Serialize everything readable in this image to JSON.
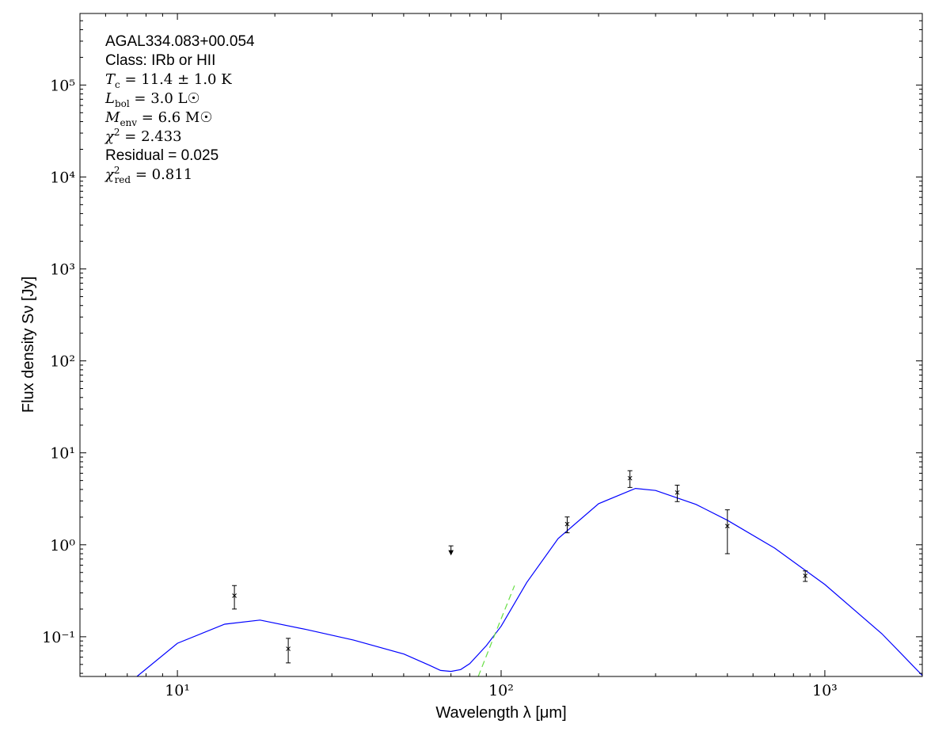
{
  "chart_data": {
    "type": "scatter",
    "x_label": "Wavelength λ [μm]",
    "y_label": "Flux density Sν [Jy]",
    "log_x": true,
    "log_y": true,
    "xlim": [
      5,
      2000
    ],
    "ylim": [
      0.037,
      600000
    ],
    "xticks": [
      {
        "value": 10,
        "label": "10¹"
      },
      {
        "value": 100,
        "label": "10²"
      },
      {
        "value": 1000,
        "label": "10³"
      }
    ],
    "yticks": [
      {
        "value": 0.1,
        "label": "10⁻¹"
      },
      {
        "value": 1,
        "label": "10⁰"
      },
      {
        "value": 10,
        "label": "10¹"
      },
      {
        "value": 100,
        "label": "10²"
      },
      {
        "value": 1000,
        "label": "10³"
      },
      {
        "value": 10000,
        "label": "10⁴"
      },
      {
        "value": 100000,
        "label": "10⁵"
      }
    ],
    "annotations": [
      {
        "text": "AGAL334.083+00.054"
      },
      {
        "text": "Class: IRb or HII"
      },
      {
        "symbol": "T",
        "sub": "c",
        "rest": " = 11.4 ± 1.0 K"
      },
      {
        "symbol": "L",
        "sub": "bol",
        "rest": " = 3.0 L☉"
      },
      {
        "symbol": "M",
        "sub": "env",
        "rest": " = 6.6 M☉"
      },
      {
        "symbol": "χ",
        "sup": "2",
        "rest": " = 2.433"
      },
      {
        "text": "Residual = 0.025"
      },
      {
        "symbol": "χ",
        "sub": "red",
        "sup": "2",
        "rest": " = 0.811"
      }
    ],
    "series": [
      {
        "style": "line",
        "color": "#0000ff",
        "x": [
          7.5,
          10,
          14,
          18,
          25,
          35,
          50,
          60,
          65,
          70,
          75,
          80,
          90,
          100,
          120,
          150,
          200,
          260,
          300,
          400,
          500,
          700,
          1000,
          1500,
          2000
        ],
        "values": [
          0.037,
          0.085,
          0.137,
          0.152,
          0.12,
          0.092,
          0.065,
          0.049,
          0.043,
          0.042,
          0.044,
          0.051,
          0.08,
          0.13,
          0.39,
          1.17,
          2.8,
          4.1,
          3.9,
          2.75,
          1.85,
          0.92,
          0.37,
          0.108,
          0.038
        ]
      },
      {
        "style": "dashed-line",
        "color": "#66dd44",
        "x": [
          85,
          95,
          110
        ],
        "values": [
          0.037,
          0.1,
          0.36
        ]
      },
      {
        "style": "errorbar",
        "color": "#000000",
        "x": [
          15,
          22,
          160,
          250,
          350,
          500,
          870
        ],
        "values": [
          0.28,
          0.074,
          1.68,
          5.3,
          3.7,
          1.6,
          0.46
        ],
        "errors": [
          0.08,
          0.022,
          0.33,
          1.1,
          0.75,
          0.8,
          0.06
        ]
      },
      {
        "style": "upper-limit",
        "color": "#000000",
        "x": [
          70
        ],
        "values": [
          0.9
        ]
      }
    ]
  }
}
